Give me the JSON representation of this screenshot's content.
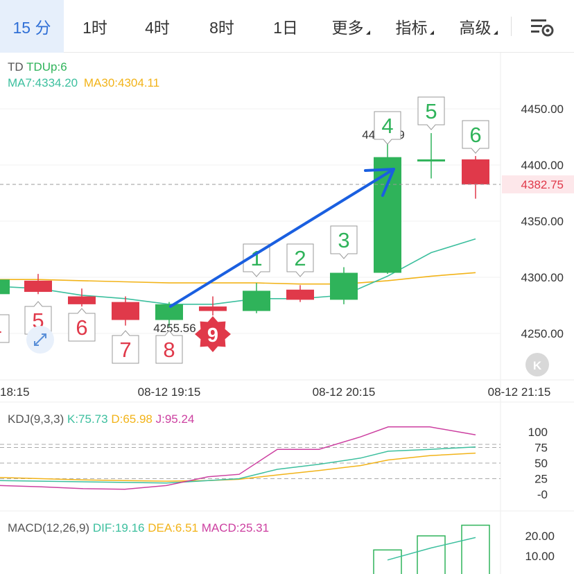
{
  "tabs": [
    {
      "label": "15 分",
      "active": true
    },
    {
      "label": "1时"
    },
    {
      "label": "4时"
    },
    {
      "label": "8时"
    },
    {
      "label": "1日"
    },
    {
      "label": "更多",
      "dropdown": true
    },
    {
      "label": "指标",
      "dropdown": true
    },
    {
      "label": "高级",
      "dropdown": true
    }
  ],
  "settings_icon": "chart-settings-icon",
  "main_panel": {
    "indicator_name": "TD",
    "indicator_value": "TDUp:6",
    "ma7": "MA7:4334.20",
    "ma30": "MA30:4304.11",
    "current_price": "4382.75",
    "y_ticks": [
      "4450.00",
      "4400.00",
      "4350.00",
      "4300.00",
      "4250.00"
    ],
    "x_ticks": [
      "18:15",
      "08-12 19:15",
      "08-12 20:15",
      "08-12 21:15"
    ],
    "high_annotation": "4428.39",
    "low_annotation": "4255.56",
    "td_nine": "9",
    "td_red_labels": [
      "4",
      "5",
      "6",
      "7",
      "8"
    ],
    "td_green_labels": [
      "1",
      "2",
      "3",
      "4",
      "5",
      "6"
    ],
    "collapse_icon": "collapse-left-icon",
    "expand_icon": "expand-arrows-icon"
  },
  "kdj_panel": {
    "name": "KDJ(9,3,3)",
    "k": "K:75.73",
    "d": "D:65.98",
    "j": "J:95.24",
    "y_ticks": [
      "100",
      "75",
      "50",
      "25",
      "-0"
    ]
  },
  "macd_panel": {
    "name": "MACD(12,26,9)",
    "dif": "DIF:19.16",
    "dea": "DEA:6.51",
    "macd": "MACD:25.31",
    "y_ticks": [
      "20.00",
      "10.00"
    ]
  },
  "colors": {
    "up": "#2fb35a",
    "down": "#e0394a",
    "ma7": "#3cbf9e",
    "ma30": "#f2b318",
    "kdj_j": "#cc3fa0",
    "accent": "#2f6fd6",
    "arrow": "#1a5fe0"
  },
  "chart_data": [
    {
      "type": "candlestick",
      "title": "",
      "y_range": [
        4220,
        4470
      ],
      "current_price": 4382.75,
      "candles": [
        {
          "open": 4285,
          "close": 4298,
          "high": 4300,
          "low": 4284
        },
        {
          "open": 4297,
          "close": 4287,
          "high": 4303,
          "low": 4285
        },
        {
          "open": 4283,
          "close": 4276,
          "high": 4290,
          "low": 4274
        },
        {
          "open": 4278,
          "close": 4262,
          "high": 4283,
          "low": 4257
        },
        {
          "open": 4262,
          "close": 4276,
          "high": 4278,
          "low": 4256
        },
        {
          "open": 4274,
          "close": 4270,
          "high": 4283,
          "low": 4266
        },
        {
          "open": 4270,
          "close": 4288,
          "high": 4295,
          "low": 4268
        },
        {
          "open": 4289,
          "close": 4280,
          "high": 4293,
          "low": 4278
        },
        {
          "open": 4280,
          "close": 4304,
          "high": 4309,
          "low": 4276
        },
        {
          "open": 4304,
          "close": 4407,
          "high": 4420,
          "low": 4303
        },
        {
          "open": 4405,
          "close": 4405,
          "high": 4428.39,
          "low": 4388
        },
        {
          "open": 4405,
          "close": 4382.75,
          "high": 4408,
          "low": 4370
        }
      ],
      "ma7": [
        4292,
        4290,
        4284,
        4281,
        4276,
        4276,
        4281,
        4281,
        4284,
        4301,
        4322,
        4334.2
      ],
      "ma30": [
        4298,
        4298,
        4297,
        4296,
        4295,
        4295,
        4295,
        4294,
        4294,
        4297,
        4301,
        4304.11
      ]
    },
    {
      "type": "line",
      "title": "KDJ(9,3,3)",
      "y_range": [
        0,
        110
      ],
      "series": [
        {
          "name": "K",
          "values": [
            22,
            21,
            20,
            19,
            18,
            22,
            25,
            40,
            48,
            58,
            69,
            72,
            75.73
          ]
        },
        {
          "name": "D",
          "values": [
            27,
            25,
            23,
            22,
            21,
            22,
            24,
            31,
            38,
            46,
            55,
            62,
            65.98
          ]
        },
        {
          "name": "J",
          "values": [
            14,
            12,
            9,
            8,
            14,
            28,
            32,
            72,
            72,
            92,
            108,
            108,
            95.24
          ]
        }
      ]
    },
    {
      "type": "bar",
      "title": "MACD(12,26,9)",
      "series": [
        {
          "name": "MACD",
          "values": [
            13,
            20,
            25.31
          ]
        },
        {
          "name": "DIF",
          "values": [
            8,
            14,
            19.16
          ]
        }
      ]
    }
  ]
}
